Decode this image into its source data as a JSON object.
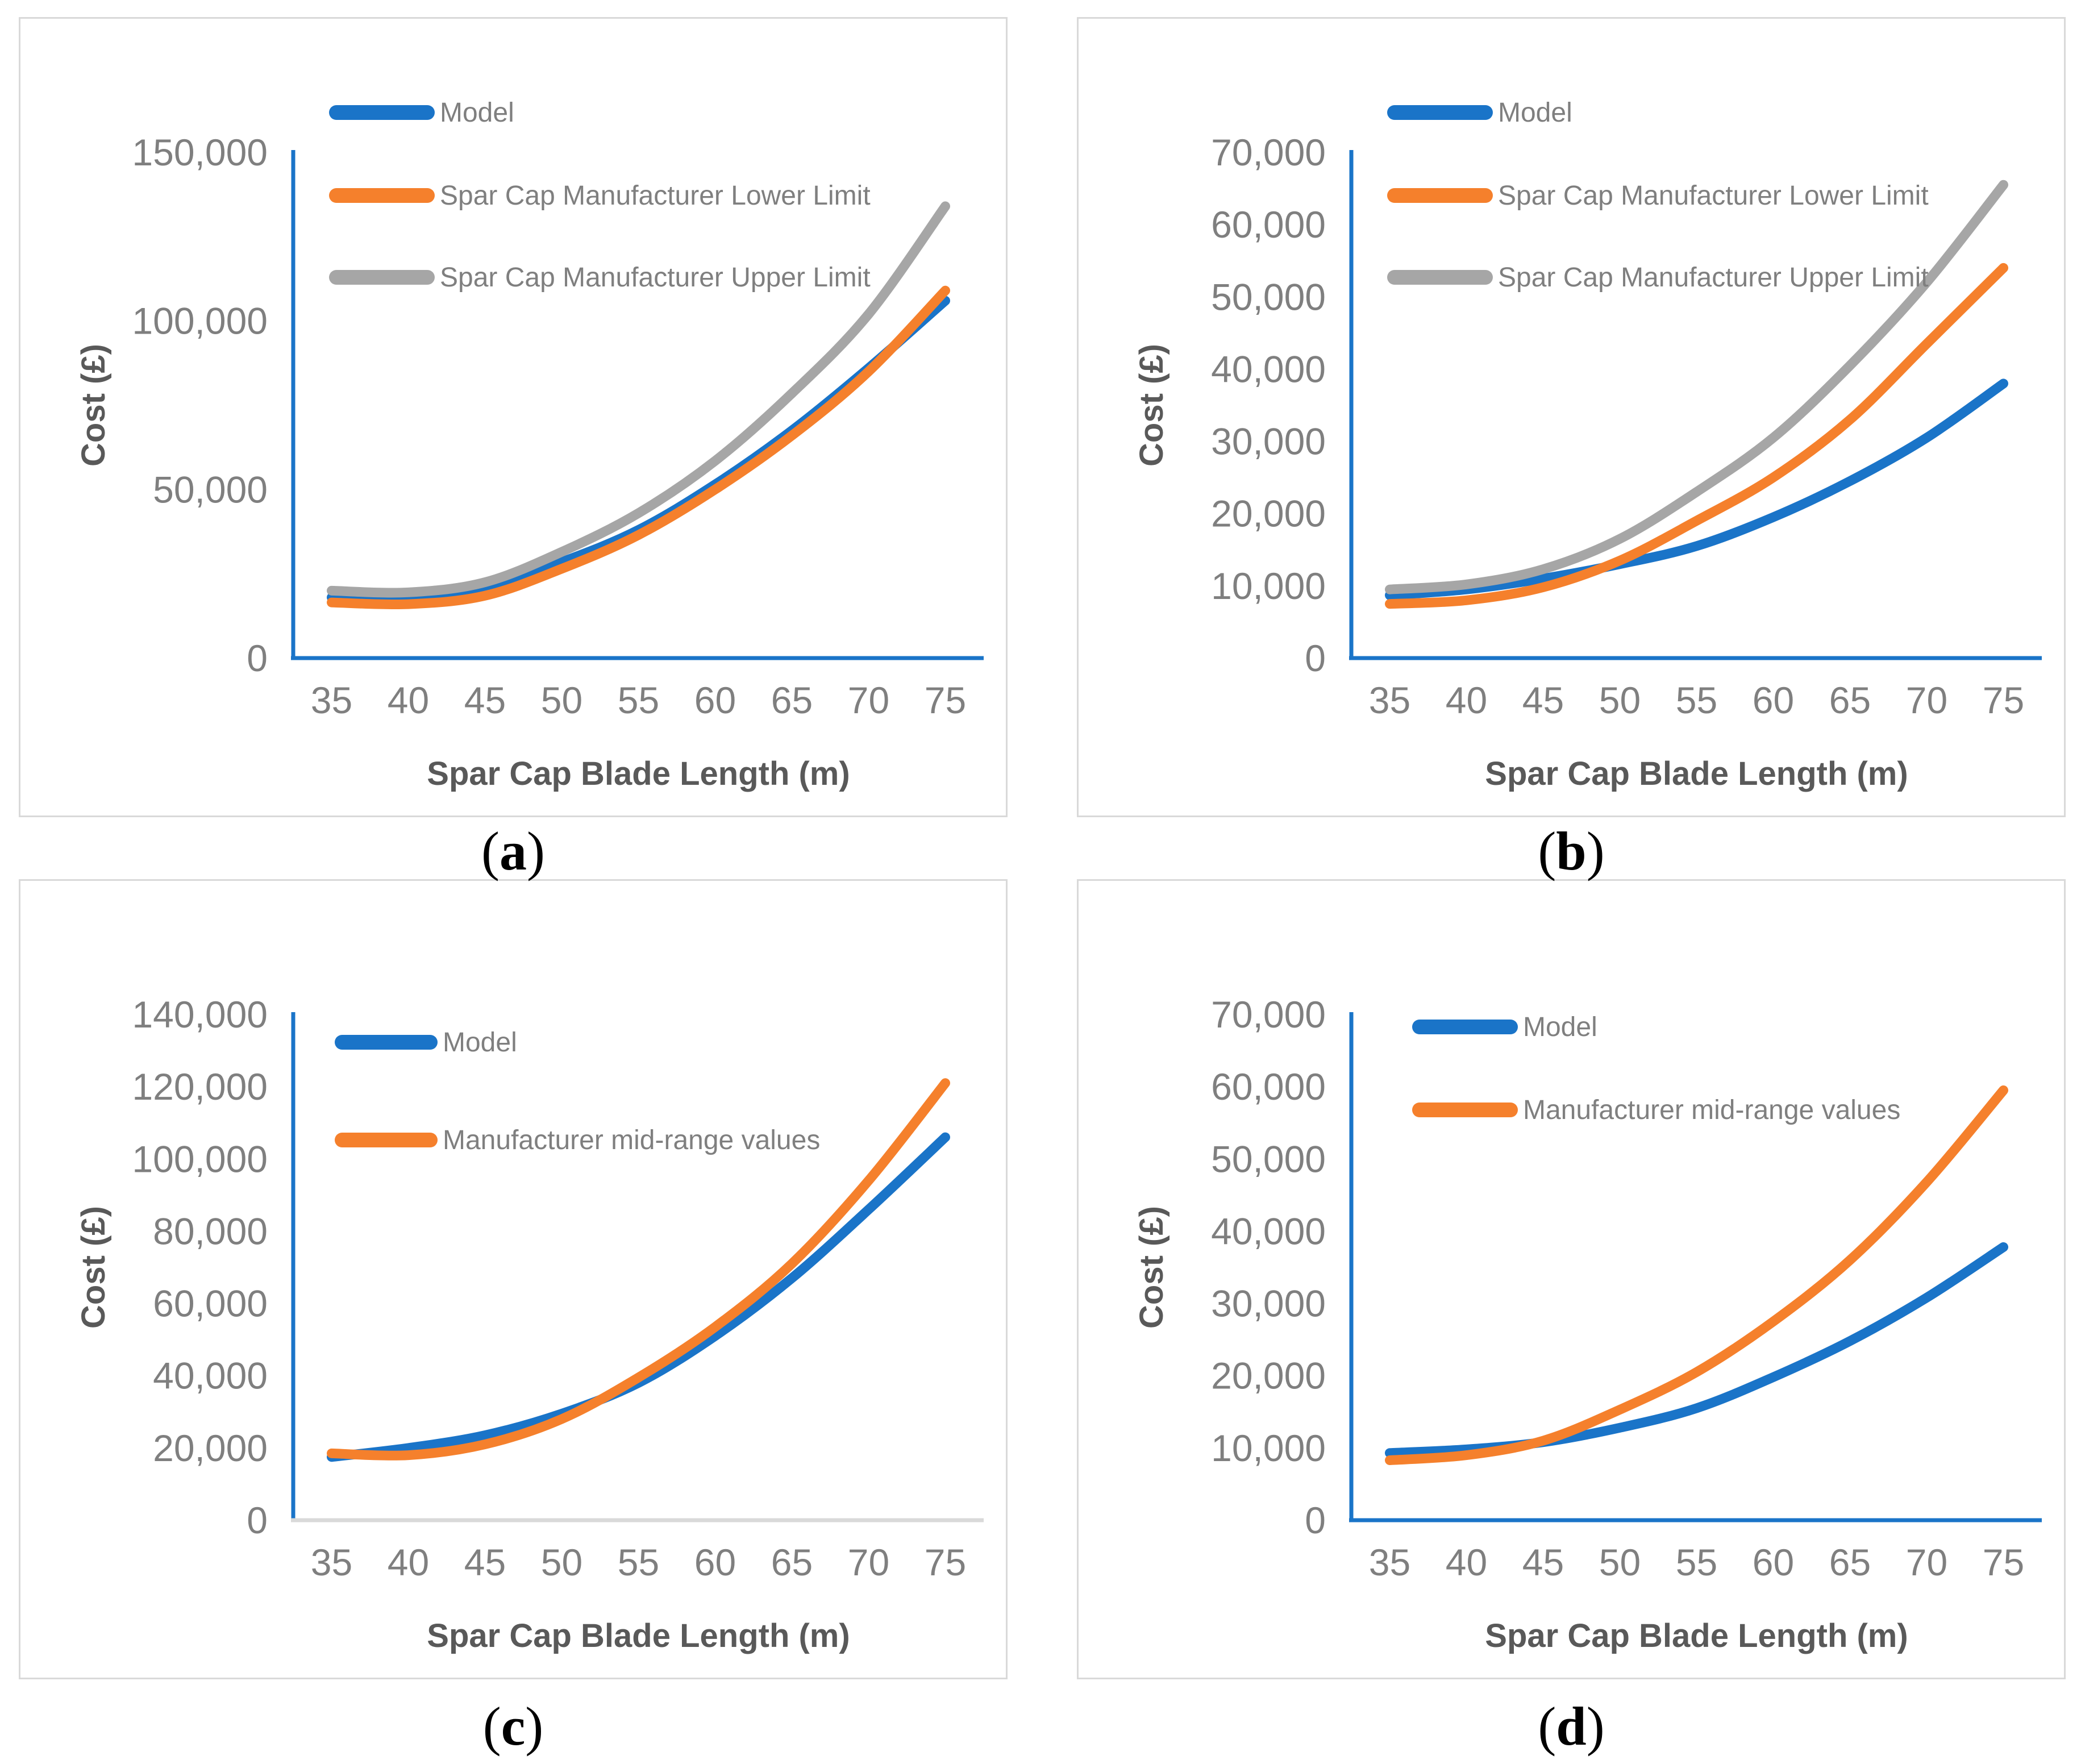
{
  "figure": {
    "colors": {
      "series_blue": "#1A74C8",
      "series_orange": "#F5802C",
      "series_gray": "#A6A6A6",
      "axis_blue": "#1A74C8",
      "axis_gray": "#D9D9D9",
      "tick_text": "#7F7F7F",
      "axis_title_text": "#595959",
      "legend_text": "#7F7F7F",
      "panel_border": "#D9D9D9",
      "caption_text": "#000000"
    }
  },
  "chart_data": [
    {
      "id": "a",
      "type": "line",
      "caption": {
        "open": "(",
        "letter": "a",
        "close": ")"
      },
      "x": [
        35,
        40,
        45,
        50,
        55,
        60,
        65,
        70,
        75
      ],
      "xlabel": "Spar Cap Blade Length (m)",
      "ylabel": "Cost (£)",
      "ylim": [
        0,
        150000
      ],
      "ytick_values": [
        0,
        50000,
        100000,
        150000
      ],
      "ytick_labels": [
        "0",
        "50,000",
        "100,000",
        "150,000"
      ],
      "grid": false,
      "legend_position": "top-left-inside",
      "x_axis_color": "axis_blue",
      "y_axis_color": "axis_blue",
      "series": [
        {
          "name": "Model",
          "color": "series_blue",
          "values": [
            18000,
            18500,
            21000,
            28500,
            38000,
            51500,
            67500,
            86000,
            106000
          ]
        },
        {
          "name": "Spar Cap Manufacturer Lower Limit",
          "color": "series_orange",
          "values": [
            16500,
            16000,
            18500,
            26500,
            36500,
            50000,
            66000,
            85000,
            109000
          ]
        },
        {
          "name": "Spar Cap Manufacturer Upper Limit",
          "color": "series_gray",
          "values": [
            20000,
            19500,
            22500,
            31500,
            43000,
            58500,
            78500,
            102000,
            134000
          ]
        }
      ],
      "legend_geom": {
        "x": 556,
        "swatch_w": 160,
        "item_y": [
          165,
          311,
          455
        ]
      }
    },
    {
      "id": "b",
      "type": "line",
      "caption": {
        "open": "(",
        "letter": "b",
        "close": ")"
      },
      "x": [
        35,
        40,
        45,
        50,
        55,
        60,
        65,
        70,
        75
      ],
      "xlabel": "Spar Cap Blade  Length (m)",
      "ylabel": "Cost (£)",
      "ylim": [
        0,
        70000
      ],
      "ytick_values": [
        0,
        10000,
        20000,
        30000,
        40000,
        50000,
        60000,
        70000
      ],
      "ytick_labels": [
        "0",
        "10,000",
        "20,000",
        "30,000",
        "40,000",
        "50,000",
        "60,000",
        "70,000"
      ],
      "grid": false,
      "legend_position": "top-left-inside",
      "x_axis_color": "axis_blue",
      "y_axis_color": "axis_blue",
      "series": [
        {
          "name": "Model",
          "color": "series_blue",
          "values": [
            8700,
            9500,
            11000,
            13000,
            15500,
            19500,
            24500,
            30500,
            38000
          ]
        },
        {
          "name": "Spar Cap Manufacturer Lower Limit",
          "color": "series_orange",
          "values": [
            7500,
            8000,
            9800,
            13500,
            19000,
            25000,
            33000,
            43500,
            54000
          ]
        },
        {
          "name": "Spar Cap Manufacturer Upper Limit",
          "color": "series_gray",
          "values": [
            9500,
            10200,
            12300,
            16500,
            23000,
            30500,
            40500,
            52000,
            65500
          ]
        }
      ],
      "legend_geom": {
        "x": 556,
        "swatch_w": 160,
        "item_y": [
          165,
          311,
          455
        ]
      }
    },
    {
      "id": "c",
      "type": "line",
      "caption": {
        "open": "(",
        "letter": "c",
        "close": ")"
      },
      "x": [
        35,
        40,
        45,
        50,
        55,
        60,
        65,
        70,
        75
      ],
      "xlabel": "Spar Cap Blade Length (m)",
      "ylabel": "Cost (£)",
      "ylim": [
        0,
        140000
      ],
      "ytick_values": [
        0,
        20000,
        40000,
        60000,
        80000,
        100000,
        120000,
        140000
      ],
      "ytick_labels": [
        "0",
        "20,000",
        "40,000",
        "60,000",
        "80,000",
        "100,000",
        "120,000",
        "140,000"
      ],
      "grid": false,
      "legend_position": "top-left-inside",
      "x_axis_color": "axis_gray",
      "y_axis_color": "axis_blue",
      "series": [
        {
          "name": "Model",
          "color": "series_blue",
          "values": [
            17500,
            20000,
            23500,
            29500,
            38000,
            51000,
            67000,
            86000,
            106000
          ]
        },
        {
          "name": "Manufacturer mid-range values",
          "color": "series_orange",
          "values": [
            18500,
            18000,
            21000,
            28000,
            39500,
            53500,
            71000,
            94000,
            121000
          ]
        }
      ],
      "legend_geom": {
        "x": 566,
        "swatch_w": 155,
        "item_y": [
          284,
          456
        ]
      }
    },
    {
      "id": "d",
      "type": "line",
      "caption": {
        "open": "(",
        "letter": "d",
        "close": ")"
      },
      "x": [
        35,
        40,
        45,
        50,
        55,
        60,
        65,
        70,
        75
      ],
      "xlabel": "Spar Cap Blade Length (m)",
      "ylabel": "Cost (£)",
      "ylim": [
        0,
        70000
      ],
      "ytick_values": [
        0,
        10000,
        20000,
        30000,
        40000,
        50000,
        60000,
        70000
      ],
      "ytick_labels": [
        "0",
        "10,000",
        "20,000",
        "30,000",
        "40,000",
        "50,000",
        "60,000",
        "70,000"
      ],
      "grid": false,
      "legend_position": "top-left-inside",
      "x_axis_color": "axis_blue",
      "y_axis_color": "axis_blue",
      "series": [
        {
          "name": "Model",
          "color": "series_blue",
          "values": [
            9300,
            9800,
            10800,
            12800,
            15500,
            19800,
            24800,
            30800,
            37800
          ]
        },
        {
          "name": "Manufacturer mid-range values",
          "color": "series_orange",
          "values": [
            8300,
            9000,
            11000,
            15300,
            20500,
            27500,
            36000,
            46800,
            59500
          ]
        }
      ],
      "legend_geom": {
        "x": 600,
        "swatch_w": 160,
        "item_y": [
          257,
          403
        ]
      }
    }
  ]
}
